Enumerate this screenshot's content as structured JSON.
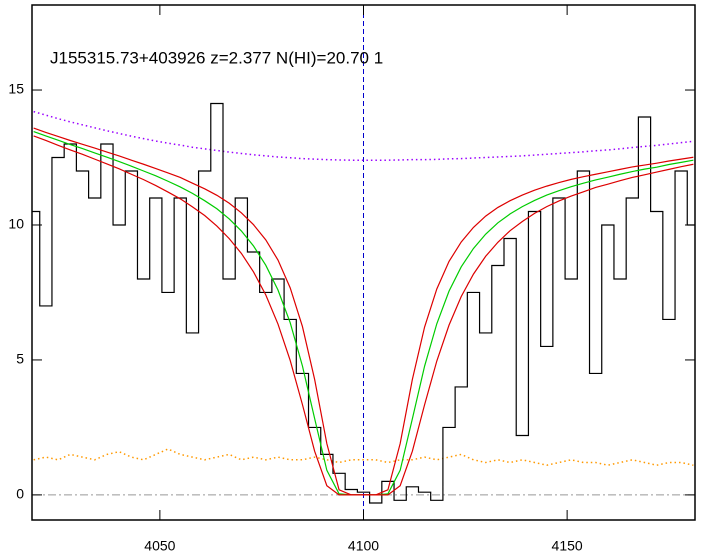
{
  "chart_data": {
    "type": "line",
    "title": "J155315.73+403926 z=2.377 N(HI)=20.70 1",
    "x": [
      4019,
      4022,
      4025,
      4028,
      4031,
      4034,
      4037,
      4040,
      4043,
      4046,
      4049,
      4052,
      4055,
      4058,
      4061,
      4064,
      4067,
      4070,
      4073,
      4076,
      4079,
      4082,
      4085,
      4088,
      4091,
      4094,
      4097,
      4100,
      4103,
      4106,
      4109,
      4112,
      4115,
      4118,
      4121,
      4124,
      4127,
      4130,
      4133,
      4136,
      4139,
      4142,
      4145,
      4148,
      4151,
      4154,
      4157,
      4160,
      4163,
      4166,
      4169,
      4172,
      4175,
      4178,
      4181
    ],
    "series": [
      {
        "color": "#ff9900",
        "line_style": "dotted",
        "values": [
          1.3,
          1.4,
          1.3,
          1.5,
          1.4,
          1.3,
          1.5,
          1.6,
          1.4,
          1.3,
          1.5,
          1.7,
          1.5,
          1.4,
          1.3,
          1.4,
          1.5,
          1.3,
          1.4,
          1.3,
          1.4,
          1.3,
          1.3,
          1.4,
          1.3,
          1.2,
          1.3,
          1.3,
          1.3,
          1.2,
          1.3,
          1.3,
          1.4,
          1.3,
          1.4,
          1.5,
          1.3,
          1.2,
          1.3,
          1.2,
          1.3,
          1.2,
          1.1,
          1.2,
          1.3,
          1.2,
          1.2,
          1.1,
          1.2,
          1.3,
          1.2,
          1.1,
          1.2,
          1.2,
          1.1
        ]
      },
      {
        "color": "#9900ff",
        "line_style": "dotted",
        "values": [
          14.2,
          14.07,
          13.94,
          13.82,
          13.71,
          13.6,
          13.49,
          13.39,
          13.29,
          13.2,
          13.11,
          13.03,
          12.96,
          12.88,
          12.82,
          12.76,
          12.7,
          12.65,
          12.6,
          12.56,
          12.52,
          12.49,
          12.46,
          12.44,
          12.42,
          12.41,
          12.4,
          12.4,
          12.4,
          12.4,
          12.41,
          12.42,
          12.42,
          12.43,
          12.45,
          12.46,
          12.48,
          12.5,
          12.52,
          12.54,
          12.56,
          12.59,
          12.62,
          12.65,
          12.68,
          12.71,
          12.75,
          12.78,
          12.82,
          12.87,
          12.91,
          12.95,
          13.0,
          13.05,
          13.1
        ]
      },
      {
        "color": "#000000",
        "line_style": "step",
        "values": [
          10.5,
          7,
          12.5,
          13,
          12,
          11,
          13,
          10,
          12,
          8,
          11,
          7.5,
          11,
          6,
          12,
          14.5,
          8,
          11,
          9,
          7.5,
          8,
          6.5,
          4.5,
          2.5,
          1.5,
          0.8,
          0.2,
          0.1,
          -0.3,
          0.5,
          -0.2,
          0.3,
          0.1,
          -0.2,
          2.5,
          4,
          7.5,
          6,
          8.5,
          9.5,
          2.2,
          10.5,
          5.5,
          11,
          8,
          12,
          4.5,
          10,
          8,
          11,
          14,
          10.5,
          6.5,
          12,
          10
        ]
      },
      {
        "color": "#00cc00",
        "line_style": "solid",
        "values": [
          13.46,
          13.3,
          13.14,
          12.98,
          12.83,
          12.67,
          12.51,
          12.35,
          12.18,
          12.0,
          11.82,
          11.62,
          11.41,
          11.17,
          10.9,
          10.6,
          10.23,
          9.78,
          9.22,
          8.51,
          7.59,
          6.38,
          4.78,
          2.83,
          0.91,
          0.04,
          0,
          0,
          0,
          0.04,
          0.91,
          2.82,
          4.77,
          6.34,
          7.55,
          8.45,
          9.13,
          9.66,
          10.08,
          10.41,
          10.68,
          10.91,
          11.11,
          11.27,
          11.42,
          11.55,
          11.67,
          11.77,
          11.88,
          11.98,
          12.07,
          12.14,
          12.24,
          12.32,
          12.4
        ]
      },
      {
        "color": "#dd0000",
        "line_style": "solid",
        "values": [
          13.59,
          13.43,
          13.28,
          13.13,
          12.99,
          12.85,
          12.7,
          12.56,
          12.4,
          12.25,
          12.09,
          11.93,
          11.76,
          11.55,
          11.34,
          11.1,
          10.81,
          10.45,
          10.01,
          9.45,
          8.7,
          7.67,
          6.24,
          4.28,
          1.9,
          0.19,
          0,
          0,
          0,
          0.19,
          1.9,
          4.28,
          6.22,
          7.63,
          8.65,
          9.37,
          9.91,
          10.33,
          10.65,
          10.9,
          11.11,
          11.29,
          11.44,
          11.57,
          11.69,
          11.79,
          11.88,
          11.97,
          12.06,
          12.15,
          12.22,
          12.29,
          12.37,
          12.44,
          12.51
        ]
      },
      {
        "color": "#dd0000",
        "line_style": "solid",
        "values": [
          13.3,
          13.13,
          12.95,
          12.78,
          12.62,
          12.44,
          12.26,
          12.08,
          11.88,
          11.68,
          11.46,
          11.22,
          10.97,
          10.67,
          10.35,
          9.96,
          9.5,
          8.95,
          8.26,
          7.41,
          6.33,
          4.98,
          3.35,
          1.62,
          0.34,
          0,
          0,
          0,
          0,
          0,
          0.34,
          1.62,
          3.34,
          4.96,
          6.29,
          7.35,
          8.18,
          8.84,
          9.36,
          9.79,
          10.13,
          10.43,
          10.68,
          10.89,
          11.07,
          11.23,
          11.39,
          11.51,
          11.64,
          11.76,
          11.86,
          11.96,
          12.06,
          12.16,
          12.25
        ]
      }
    ],
    "vline": 4100,
    "vline_color": "#0000cc",
    "zero_line": 0,
    "xlim": [
      4018.6,
      4181.4
    ],
    "xticks": [
      4050,
      4100,
      4150
    ],
    "ylim": [
      -0.93,
      18.15
    ],
    "yticks": [
      0,
      5,
      10,
      15
    ]
  }
}
